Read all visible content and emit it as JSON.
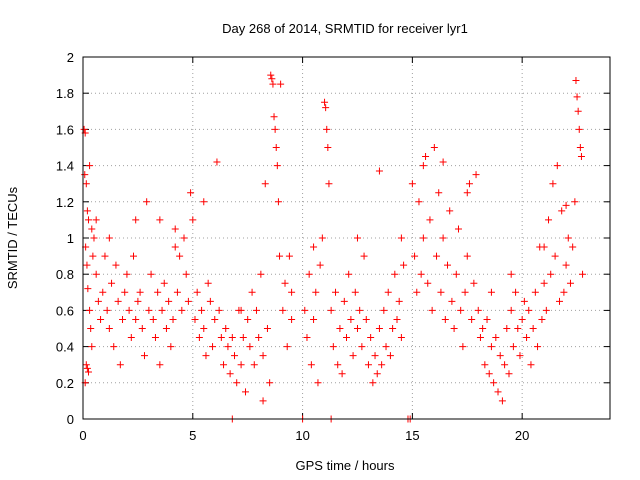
{
  "chart_data": {
    "type": "scatter",
    "title": "Day 268 of 2014, SRMTID for receiver lyr1",
    "xlabel": "GPS time / hours",
    "ylabel": "SRMTID / TECUs",
    "xlim": [
      0,
      24
    ],
    "ylim": [
      0,
      2
    ],
    "xticks": [
      "0",
      "5",
      "10",
      "15",
      "20"
    ],
    "xtick_values": [
      0,
      5,
      10,
      15,
      20
    ],
    "yticks": [
      "0",
      "0.2",
      "0.4",
      "0.6",
      "0.8",
      "1",
      "1.2",
      "1.4",
      "1.6",
      "1.8",
      "2"
    ],
    "ytick_values": [
      0,
      0.2,
      0.4,
      0.6,
      0.8,
      1.0,
      1.2,
      1.4,
      1.6,
      1.8,
      2.0
    ],
    "grid": true,
    "marker": "+",
    "color": "#ff0000",
    "series": [
      {
        "name": "lyr1",
        "points": [
          [
            0.05,
            1.6
          ],
          [
            0.1,
            1.58
          ],
          [
            0.08,
            1.35
          ],
          [
            0.15,
            1.3
          ],
          [
            0.2,
            1.15
          ],
          [
            0.3,
            1.4
          ],
          [
            0.25,
            1.1
          ],
          [
            0.4,
            1.05
          ],
          [
            0.12,
            0.95
          ],
          [
            0.18,
            0.85
          ],
          [
            0.22,
            0.72
          ],
          [
            0.3,
            0.6
          ],
          [
            0.35,
            0.5
          ],
          [
            0.15,
            0.3
          ],
          [
            0.2,
            0.28
          ],
          [
            0.25,
            0.26
          ],
          [
            0.1,
            0.2
          ],
          [
            0.4,
            0.4
          ],
          [
            0.45,
            0.9
          ],
          [
            0.5,
            1.0
          ],
          [
            0.6,
            0.8
          ],
          [
            0.7,
            0.65
          ],
          [
            0.8,
            0.55
          ],
          [
            0.9,
            0.7
          ],
          [
            1.0,
            0.9
          ],
          [
            1.1,
            0.6
          ],
          [
            1.2,
            0.5
          ],
          [
            1.3,
            0.75
          ],
          [
            1.4,
            0.4
          ],
          [
            1.5,
            0.85
          ],
          [
            1.6,
            0.65
          ],
          [
            1.7,
            0.3
          ],
          [
            1.8,
            0.55
          ],
          [
            1.9,
            0.7
          ],
          [
            2.0,
            0.8
          ],
          [
            2.1,
            0.6
          ],
          [
            2.2,
            0.45
          ],
          [
            2.3,
            0.9
          ],
          [
            2.4,
            0.55
          ],
          [
            2.5,
            0.65
          ],
          [
            2.6,
            0.7
          ],
          [
            2.7,
            0.5
          ],
          [
            2.8,
            0.35
          ],
          [
            2.9,
            1.2
          ],
          [
            3.0,
            0.6
          ],
          [
            3.1,
            0.8
          ],
          [
            3.2,
            0.55
          ],
          [
            3.3,
            0.45
          ],
          [
            3.4,
            0.7
          ],
          [
            3.5,
            0.3
          ],
          [
            3.6,
            0.6
          ],
          [
            3.7,
            0.75
          ],
          [
            3.8,
            0.5
          ],
          [
            3.9,
            0.65
          ],
          [
            4.0,
            0.4
          ],
          [
            4.1,
            0.55
          ],
          [
            4.2,
            1.05
          ],
          [
            4.3,
            0.7
          ],
          [
            4.4,
            0.9
          ],
          [
            4.5,
            0.6
          ],
          [
            4.6,
            1.0
          ],
          [
            4.7,
            0.8
          ],
          [
            4.8,
            0.65
          ],
          [
            4.9,
            1.25
          ],
          [
            5.0,
            1.1
          ],
          [
            5.1,
            0.55
          ],
          [
            5.2,
            0.7
          ],
          [
            5.3,
            0.45
          ],
          [
            5.4,
            0.6
          ],
          [
            5.5,
            0.5
          ],
          [
            5.6,
            0.35
          ],
          [
            5.7,
            0.75
          ],
          [
            5.8,
            0.65
          ],
          [
            5.9,
            0.4
          ],
          [
            6.0,
            0.55
          ],
          [
            6.1,
            1.42
          ],
          [
            6.2,
            0.6
          ],
          [
            6.3,
            0.45
          ],
          [
            6.4,
            0.3
          ],
          [
            6.5,
            0.5
          ],
          [
            6.6,
            0.4
          ],
          [
            6.7,
            0.25
          ],
          [
            6.8,
            0.45
          ],
          [
            6.9,
            0.35
          ],
          [
            7.0,
            0.2
          ],
          [
            7.1,
            0.6
          ],
          [
            7.2,
            0.3
          ],
          [
            7.3,
            0.45
          ],
          [
            7.4,
            0.15
          ],
          [
            7.5,
            0.55
          ],
          [
            7.6,
            0.4
          ],
          [
            7.7,
            0.7
          ],
          [
            7.8,
            0.3
          ],
          [
            7.9,
            0.6
          ],
          [
            8.0,
            0.45
          ],
          [
            8.1,
            0.8
          ],
          [
            8.2,
            0.35
          ],
          [
            8.3,
            1.3
          ],
          [
            8.4,
            0.5
          ],
          [
            8.5,
            0.2
          ],
          [
            8.55,
            1.9
          ],
          [
            8.6,
            1.88
          ],
          [
            8.65,
            1.85
          ],
          [
            8.7,
            1.67
          ],
          [
            8.75,
            1.6
          ],
          [
            8.8,
            1.5
          ],
          [
            8.85,
            1.4
          ],
          [
            8.9,
            1.2
          ],
          [
            8.95,
            0.9
          ],
          [
            9.0,
            1.85
          ],
          [
            9.1,
            0.6
          ],
          [
            9.2,
            0.75
          ],
          [
            9.3,
            0.4
          ],
          [
            9.4,
            0.9
          ],
          [
            9.5,
            0.55
          ],
          [
            6.8,
            0.0
          ],
          [
            10.0,
            0.0
          ],
          [
            10.1,
            0.6
          ],
          [
            10.2,
            0.45
          ],
          [
            10.3,
            0.8
          ],
          [
            10.4,
            0.3
          ],
          [
            10.5,
            0.55
          ],
          [
            10.6,
            0.7
          ],
          [
            10.7,
            0.2
          ],
          [
            10.8,
            0.85
          ],
          [
            10.9,
            1.0
          ],
          [
            11.0,
            1.75
          ],
          [
            11.05,
            1.72
          ],
          [
            11.1,
            1.6
          ],
          [
            11.15,
            1.5
          ],
          [
            11.2,
            1.3
          ],
          [
            11.3,
            0.6
          ],
          [
            11.4,
            0.4
          ],
          [
            11.5,
            0.7
          ],
          [
            11.6,
            0.3
          ],
          [
            11.7,
            0.5
          ],
          [
            11.8,
            0.25
          ],
          [
            11.9,
            0.65
          ],
          [
            12.0,
            0.45
          ],
          [
            12.1,
            0.8
          ],
          [
            12.2,
            0.55
          ],
          [
            12.3,
            0.35
          ],
          [
            12.4,
            0.7
          ],
          [
            12.5,
            0.5
          ],
          [
            12.6,
            0.6
          ],
          [
            12.7,
            0.4
          ],
          [
            12.8,
            0.9
          ],
          [
            12.9,
            0.55
          ],
          [
            13.0,
            0.3
          ],
          [
            13.1,
            0.45
          ],
          [
            13.2,
            0.2
          ],
          [
            13.3,
            0.35
          ],
          [
            13.4,
            0.25
          ],
          [
            13.5,
            0.5
          ],
          [
            13.6,
            0.3
          ],
          [
            13.7,
            0.6
          ],
          [
            13.8,
            0.4
          ],
          [
            13.9,
            0.7
          ],
          [
            14.0,
            0.35
          ],
          [
            14.1,
            0.5
          ],
          [
            14.2,
            0.8
          ],
          [
            14.3,
            0.55
          ],
          [
            14.4,
            0.65
          ],
          [
            14.5,
            0.45
          ],
          [
            14.6,
            0.85
          ],
          [
            11.3,
            0.0
          ],
          [
            14.8,
            0.0
          ],
          [
            14.9,
            0.0
          ],
          [
            15.0,
            1.3
          ],
          [
            15.1,
            0.9
          ],
          [
            15.2,
            0.7
          ],
          [
            15.3,
            1.2
          ],
          [
            15.4,
            0.8
          ],
          [
            15.5,
            1.0
          ],
          [
            15.6,
            1.45
          ],
          [
            15.7,
            0.75
          ],
          [
            15.8,
            1.1
          ],
          [
            15.9,
            0.6
          ],
          [
            16.0,
            1.5
          ],
          [
            16.1,
            0.9
          ],
          [
            16.2,
            1.25
          ],
          [
            16.3,
            0.7
          ],
          [
            16.4,
            1.0
          ],
          [
            16.5,
            0.55
          ],
          [
            16.6,
            0.85
          ],
          [
            16.7,
            1.15
          ],
          [
            16.8,
            0.65
          ],
          [
            16.9,
            0.5
          ],
          [
            17.0,
            0.8
          ],
          [
            17.1,
            1.05
          ],
          [
            17.2,
            0.6
          ],
          [
            17.3,
            0.4
          ],
          [
            17.4,
            0.7
          ],
          [
            17.5,
            0.9
          ],
          [
            17.6,
            1.3
          ],
          [
            17.7,
            0.55
          ],
          [
            17.8,
            0.75
          ],
          [
            17.9,
            1.35
          ],
          [
            18.0,
            0.6
          ],
          [
            18.1,
            0.45
          ],
          [
            18.2,
            0.5
          ],
          [
            18.3,
            0.3
          ],
          [
            18.4,
            0.55
          ],
          [
            18.5,
            0.25
          ],
          [
            18.6,
            0.4
          ],
          [
            18.7,
            0.2
          ],
          [
            18.8,
            0.45
          ],
          [
            18.9,
            0.15
          ],
          [
            19.0,
            0.35
          ],
          [
            19.1,
            0.1
          ],
          [
            19.2,
            0.3
          ],
          [
            19.3,
            0.5
          ],
          [
            19.4,
            0.25
          ],
          [
            19.5,
            0.6
          ],
          [
            19.6,
            0.4
          ],
          [
            19.7,
            0.7
          ],
          [
            19.8,
            0.5
          ],
          [
            19.9,
            0.35
          ],
          [
            20.0,
            0.55
          ],
          [
            20.1,
            0.65
          ],
          [
            20.2,
            0.45
          ],
          [
            20.3,
            0.6
          ],
          [
            20.4,
            0.3
          ],
          [
            20.5,
            0.5
          ],
          [
            20.6,
            0.7
          ],
          [
            20.7,
            0.4
          ],
          [
            20.8,
            0.95
          ],
          [
            20.9,
            0.55
          ],
          [
            21.0,
            0.75
          ],
          [
            21.1,
            0.6
          ],
          [
            21.2,
            1.1
          ],
          [
            21.3,
            0.8
          ],
          [
            21.4,
            1.3
          ],
          [
            21.5,
            0.9
          ],
          [
            21.6,
            1.4
          ],
          [
            21.7,
            0.65
          ],
          [
            21.8,
            1.15
          ],
          [
            21.9,
            0.7
          ],
          [
            22.0,
            0.85
          ],
          [
            22.1,
            1.0
          ],
          [
            22.2,
            0.75
          ],
          [
            22.3,
            0.95
          ],
          [
            22.4,
            1.2
          ],
          [
            22.45,
            1.87
          ],
          [
            22.5,
            1.78
          ],
          [
            22.55,
            1.7
          ],
          [
            22.6,
            1.6
          ],
          [
            22.65,
            1.5
          ],
          [
            22.7,
            1.45
          ],
          [
            22.75,
            0.8
          ],
          [
            0.6,
            1.1
          ],
          [
            1.2,
            1.0
          ],
          [
            2.4,
            1.1
          ],
          [
            3.5,
            1.1
          ],
          [
            4.2,
            0.95
          ],
          [
            5.5,
            1.2
          ],
          [
            7.2,
            0.6
          ],
          [
            8.2,
            0.1
          ],
          [
            9.5,
            0.7
          ],
          [
            10.5,
            0.95
          ],
          [
            12.5,
            1.0
          ],
          [
            13.5,
            1.37
          ],
          [
            14.5,
            1.0
          ],
          [
            15.5,
            1.4
          ],
          [
            16.4,
            1.42
          ],
          [
            17.5,
            1.25
          ],
          [
            18.6,
            0.7
          ],
          [
            19.5,
            0.8
          ],
          [
            21.0,
            0.95
          ],
          [
            22.0,
            1.18
          ]
        ]
      }
    ]
  }
}
